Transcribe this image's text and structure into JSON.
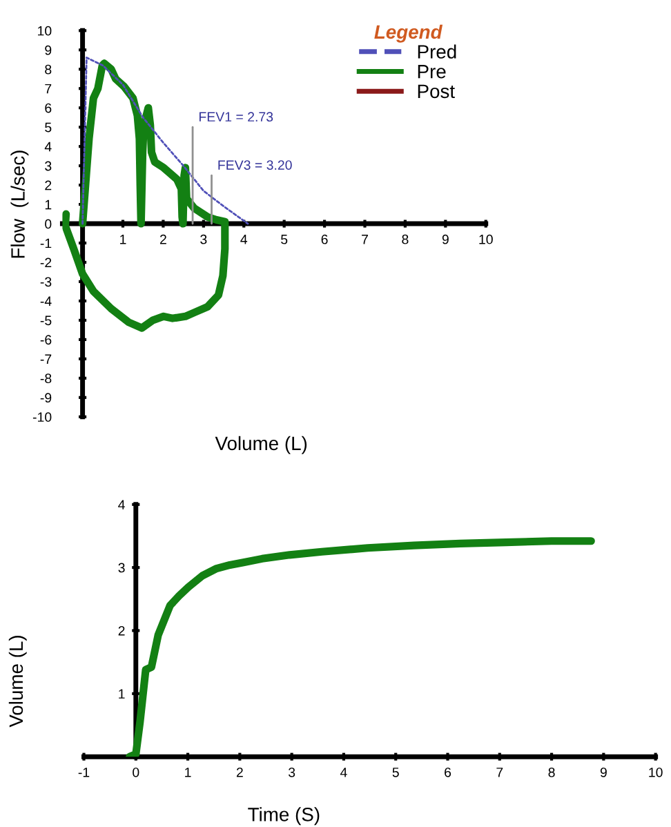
{
  "chart_data": [
    {
      "type": "line",
      "xlabel": "Volume (L)",
      "ylabel": "Flow  (L/sec)",
      "legend_title": "Legend",
      "legend": "top right",
      "xlim": [
        -0.5,
        10
      ],
      "ylim": [
        -10,
        10
      ],
      "xticks": [
        1,
        2,
        3,
        4,
        5,
        6,
        7,
        8,
        9,
        10
      ],
      "yticks": [
        -10,
        -9,
        -8,
        -7,
        -6,
        -5,
        -4,
        -3,
        -2,
        -1,
        0,
        1,
        2,
        3,
        4,
        5,
        6,
        7,
        8,
        9,
        10
      ],
      "grid": false,
      "marker": "none",
      "series": [
        {
          "name": "Pred",
          "color": "#5050b8",
          "line_style": "dashed",
          "x": [
            0.0,
            0.1,
            0.5,
            1.0,
            1.5,
            2.0,
            2.5,
            3.0,
            3.5,
            4.1
          ],
          "values": [
            0,
            8.6,
            8.2,
            7.2,
            5.5,
            4.2,
            3.0,
            1.7,
            0.9,
            0
          ]
        },
        {
          "name": "Pre",
          "color": "#138013",
          "line_style": "solid",
          "x": [
            0,
            0.16,
            0.27,
            0.38,
            0.49,
            0.54,
            0.71,
            0.82,
            1.03,
            1.25,
            1.36,
            1.41,
            1.43,
            1.45,
            1.49,
            1.52,
            1.63,
            1.68,
            1.71,
            1.79,
            2.01,
            2.34,
            2.45,
            2.47,
            2.49,
            2.52,
            2.55,
            2.58,
            2.77,
            3.1,
            3.32,
            3.53,
            3.53,
            3.48,
            3.37,
            3.1,
            2.77,
            2.55,
            2.23,
            2.01,
            1.74,
            1.47,
            1.14,
            0.71,
            0.27,
            0,
            -0.22,
            -0.43,
            -0.41
          ],
          "values": [
            0,
            4.4,
            6.5,
            7.0,
            8.2,
            8.3,
            8.0,
            7.5,
            7.1,
            6.5,
            5.6,
            4.4,
            2.0,
            0,
            3.7,
            5.1,
            6.0,
            5.1,
            3.7,
            3.2,
            2.9,
            2.3,
            1.8,
            0.35,
            0,
            2.5,
            2.9,
            1.3,
            0.8,
            0.35,
            0.2,
            0.1,
            -1.3,
            -2.7,
            -3.7,
            -4.3,
            -4.6,
            -4.8,
            -4.9,
            -4.8,
            -5.0,
            -5.4,
            -5.1,
            -4.4,
            -3.5,
            -2.6,
            -1.3,
            -0.1,
            0.5
          ]
        },
        {
          "name": "Post",
          "color": "#8b1a1a",
          "line_style": "solid"
        },
        {
          "color": "#909090",
          "line_style": "solid",
          "x": [
            2.73,
            2.73
          ],
          "values": [
            0,
            5
          ]
        },
        {
          "color": "#909090",
          "line_style": "solid",
          "x": [
            3.2,
            3.2
          ],
          "values": [
            0,
            2.5
          ]
        }
      ],
      "annotations": [
        {
          "text": "FEV1 = 2.73",
          "x": 2.73,
          "y": 5
        },
        {
          "text": "FEV3 = 3.20",
          "x": 3.2,
          "y": 2.5
        }
      ]
    },
    {
      "type": "line",
      "xlabel": "Time (S)",
      "ylabel": "Volume (L)",
      "xlim": [
        -1,
        10
      ],
      "ylim": [
        0,
        4
      ],
      "xticks": [
        -1,
        0,
        1,
        2,
        3,
        4,
        5,
        6,
        7,
        8,
        9,
        10
      ],
      "yticks": [
        1,
        2,
        3,
        4
      ],
      "grid": false,
      "marker": "none",
      "series": [
        {
          "color": "#138013",
          "line_style": "solid",
          "x": [
            -0.12,
            0,
            0.08,
            0.19,
            0.3,
            0.43,
            0.66,
            0.83,
            1.01,
            1.28,
            1.54,
            1.81,
            2.07,
            2.43,
            2.96,
            3.58,
            4.46,
            5.35,
            6.24,
            7.12,
            8.0,
            8.76
          ],
          "values": [
            0,
            0.04,
            0.55,
            1.38,
            1.42,
            1.93,
            2.4,
            2.55,
            2.69,
            2.87,
            2.98,
            3.04,
            3.08,
            3.14,
            3.2,
            3.25,
            3.31,
            3.35,
            3.38,
            3.4,
            3.42,
            3.42
          ]
        }
      ]
    }
  ]
}
